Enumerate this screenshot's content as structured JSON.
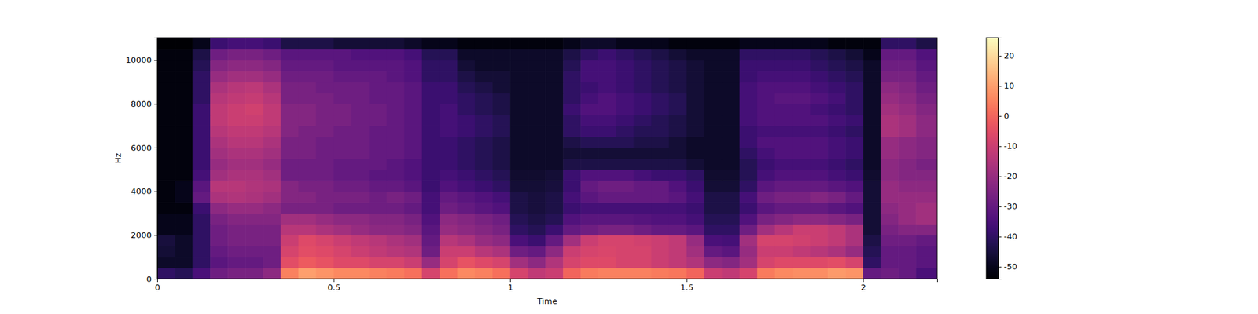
{
  "chart_data": {
    "type": "heatmap",
    "x_label": "Time",
    "y_label": "Hz",
    "color": "magma",
    "xlim": [
      0,
      2.21
    ],
    "ylim": [
      0,
      11025
    ],
    "xticks": [
      0,
      0.5,
      1,
      1.5,
      2
    ],
    "yticks": [
      0,
      2000,
      4000,
      6000,
      8000,
      10000
    ],
    "colorbar": {
      "range": [
        -54,
        26
      ],
      "ticks": [
        -50,
        -40,
        -30,
        -20,
        -10,
        0,
        10,
        20
      ]
    },
    "x_bins": [
      0,
      0.05,
      0.1,
      0.15,
      0.2,
      0.25,
      0.3,
      0.35,
      0.4,
      0.45,
      0.5,
      0.55,
      0.6,
      0.65,
      0.7,
      0.75,
      0.8,
      0.85,
      0.9,
      0.95,
      1,
      1.05,
      1.1,
      1.15,
      1.2,
      1.25,
      1.3,
      1.35,
      1.4,
      1.45,
      1.5,
      1.55,
      1.6,
      1.65,
      1.7,
      1.75,
      1.8,
      1.85,
      1.9,
      1.95,
      2,
      2.05,
      2.1,
      2.15,
      2.21
    ],
    "y_bins": [
      0,
      500,
      1000,
      1500,
      2000,
      2500,
      3000,
      3500,
      4000,
      4500,
      5000,
      5500,
      6000,
      6500,
      7000,
      7500,
      8000,
      8500,
      9000,
      9500,
      10000,
      10500,
      11025
    ],
    "values": [
      [
        -40,
        -42,
        -35,
        -28,
        -26,
        -26,
        -22,
        5,
        10,
        8,
        6,
        6,
        5,
        4,
        2,
        -8,
        2,
        6,
        5,
        2,
        -8,
        -12,
        -10,
        0,
        4,
        5,
        5,
        5,
        4,
        3,
        0,
        -10,
        -12,
        -8,
        4,
        6,
        7,
        7,
        9,
        8,
        -30,
        -28,
        -30,
        -35
      ],
      [
        -48,
        -48,
        -40,
        -32,
        -30,
        -30,
        -28,
        -5,
        -2,
        -4,
        -6,
        -6,
        -8,
        -8,
        -10,
        -20,
        -8,
        -4,
        -6,
        -8,
        -18,
        -22,
        -15,
        -8,
        -6,
        -6,
        -8,
        -8,
        -10,
        -12,
        -15,
        -22,
        -24,
        -18,
        -8,
        -6,
        -6,
        -6,
        -5,
        -8,
        -40,
        -30,
        -30,
        -32
      ],
      [
        -46,
        -48,
        -40,
        -30,
        -28,
        -28,
        -28,
        -8,
        -5,
        -6,
        -8,
        -10,
        -12,
        -14,
        -15,
        -28,
        -10,
        -10,
        -14,
        -16,
        -28,
        -30,
        -22,
        -10,
        -8,
        -7,
        -8,
        -8,
        -10,
        -12,
        -18,
        -30,
        -32,
        -20,
        -10,
        -10,
        -12,
        -14,
        -16,
        -20,
        -42,
        -30,
        -30,
        -32
      ],
      [
        -45,
        -48,
        -40,
        -28,
        -26,
        -26,
        -26,
        -10,
        -6,
        -8,
        -10,
        -12,
        -14,
        -16,
        -18,
        -30,
        -14,
        -16,
        -20,
        -22,
        -35,
        -38,
        -30,
        -18,
        -10,
        -8,
        -8,
        -9,
        -10,
        -12,
        -20,
        -35,
        -36,
        -18,
        -8,
        -8,
        -9,
        -10,
        -12,
        -16,
        -44,
        -28,
        -28,
        -30
      ],
      [
        -50,
        -50,
        -40,
        -28,
        -26,
        -26,
        -26,
        -14,
        -14,
        -16,
        -18,
        -20,
        -22,
        -22,
        -24,
        -32,
        -20,
        -22,
        -24,
        -26,
        -40,
        -42,
        -38,
        -30,
        -28,
        -26,
        -26,
        -28,
        -30,
        -30,
        -32,
        -40,
        -40,
        -28,
        -18,
        -14,
        -10,
        -10,
        -12,
        -16,
        -46,
        -26,
        -24,
        -24
      ],
      [
        -50,
        -50,
        -40,
        -26,
        -24,
        -24,
        -24,
        -18,
        -18,
        -20,
        -22,
        -22,
        -24,
        -24,
        -26,
        -34,
        -22,
        -24,
        -26,
        -28,
        -42,
        -44,
        -42,
        -34,
        -32,
        -32,
        -32,
        -33,
        -34,
        -34,
        -36,
        -42,
        -42,
        -34,
        -26,
        -24,
        -22,
        -22,
        -24,
        -26,
        -46,
        -24,
        -20,
        -18
      ],
      [
        -52,
        -52,
        -38,
        -22,
        -20,
        -20,
        -22,
        -26,
        -26,
        -26,
        -28,
        -28,
        -28,
        -28,
        -30,
        -36,
        -28,
        -30,
        -32,
        -34,
        -44,
        -45,
        -44,
        -38,
        -36,
        -36,
        -36,
        -36,
        -36,
        -36,
        -38,
        -44,
        -44,
        -38,
        -32,
        -30,
        -30,
        -30,
        -32,
        -34,
        -46,
        -22,
        -20,
        -18
      ],
      [
        -52,
        -50,
        -30,
        -16,
        -15,
        -16,
        -18,
        -24,
        -24,
        -26,
        -26,
        -26,
        -28,
        -26,
        -28,
        -36,
        -30,
        -32,
        -34,
        -36,
        -44,
        -45,
        -44,
        -36,
        -32,
        -30,
        -30,
        -30,
        -30,
        -32,
        -36,
        -44,
        -44,
        -36,
        -28,
        -26,
        -26,
        -24,
        -26,
        -30,
        -46,
        -20,
        -20,
        -20
      ],
      [
        -52,
        -50,
        -32,
        -14,
        -14,
        -15,
        -16,
        -24,
        -26,
        -26,
        -28,
        -28,
        -30,
        -30,
        -32,
        -38,
        -34,
        -36,
        -38,
        -40,
        -46,
        -46,
        -45,
        -38,
        -30,
        -28,
        -28,
        -30,
        -30,
        -34,
        -38,
        -46,
        -46,
        -40,
        -32,
        -30,
        -30,
        -30,
        -32,
        -34,
        -46,
        -20,
        -22,
        -22
      ],
      [
        -52,
        -52,
        -36,
        -18,
        -16,
        -16,
        -18,
        -28,
        -28,
        -28,
        -30,
        -30,
        -32,
        -32,
        -34,
        -38,
        -36,
        -38,
        -40,
        -42,
        -47,
        -47,
        -46,
        -38,
        -34,
        -34,
        -34,
        -36,
        -38,
        -38,
        -40,
        -47,
        -47,
        -42,
        -36,
        -34,
        -34,
        -34,
        -36,
        -38,
        -47,
        -22,
        -24,
        -24
      ],
      [
        -52,
        -52,
        -38,
        -20,
        -18,
        -18,
        -20,
        -28,
        -28,
        -28,
        -30,
        -30,
        -30,
        -32,
        -34,
        -38,
        -38,
        -40,
        -42,
        -44,
        -48,
        -48,
        -48,
        -44,
        -44,
        -44,
        -44,
        -44,
        -44,
        -44,
        -46,
        -48,
        -48,
        -42,
        -38,
        -36,
        -36,
        -36,
        -38,
        -40,
        -48,
        -22,
        -24,
        -26
      ],
      [
        -52,
        -52,
        -38,
        -18,
        -16,
        -16,
        -18,
        -26,
        -26,
        -28,
        -28,
        -28,
        -30,
        -30,
        -32,
        -38,
        -38,
        -40,
        -42,
        -44,
        -48,
        -48,
        -48,
        -46,
        -46,
        -46,
        -46,
        -46,
        -46,
        -46,
        -48,
        -48,
        -48,
        -40,
        -36,
        -34,
        -34,
        -34,
        -36,
        -38,
        -48,
        -20,
        -22,
        -24
      ],
      [
        -52,
        -52,
        -38,
        -16,
        -14,
        -14,
        -16,
        -26,
        -26,
        -28,
        -28,
        -28,
        -30,
        -30,
        -32,
        -38,
        -38,
        -40,
        -42,
        -44,
        -48,
        -48,
        -48,
        -44,
        -42,
        -42,
        -42,
        -44,
        -44,
        -46,
        -48,
        -48,
        -48,
        -38,
        -34,
        -34,
        -34,
        -34,
        -36,
        -38,
        -48,
        -20,
        -22,
        -24
      ],
      [
        -52,
        -52,
        -38,
        -14,
        -12,
        -12,
        -14,
        -24,
        -26,
        -26,
        -28,
        -28,
        -30,
        -30,
        -32,
        -38,
        -36,
        -38,
        -40,
        -42,
        -48,
        -48,
        -48,
        -40,
        -38,
        -38,
        -40,
        -42,
        -42,
        -44,
        -46,
        -48,
        -48,
        -38,
        -36,
        -36,
        -36,
        -36,
        -38,
        -40,
        -48,
        -16,
        -18,
        -22
      ],
      [
        -52,
        -52,
        -38,
        -12,
        -10,
        -10,
        -12,
        -24,
        -24,
        -26,
        -26,
        -28,
        -28,
        -30,
        -32,
        -38,
        -36,
        -38,
        -40,
        -42,
        -48,
        -48,
        -48,
        -40,
        -36,
        -36,
        -38,
        -40,
        -42,
        -44,
        -46,
        -48,
        -48,
        -36,
        -34,
        -34,
        -34,
        -34,
        -36,
        -38,
        -48,
        -16,
        -18,
        -22
      ],
      [
        -52,
        -52,
        -38,
        -12,
        -10,
        -9,
        -12,
        -24,
        -24,
        -26,
        -26,
        -28,
        -28,
        -30,
        -32,
        -38,
        -36,
        -40,
        -42,
        -44,
        -48,
        -48,
        -48,
        -38,
        -34,
        -34,
        -36,
        -38,
        -40,
        -42,
        -46,
        -48,
        -48,
        -36,
        -34,
        -34,
        -34,
        -36,
        -38,
        -40,
        -48,
        -18,
        -20,
        -24
      ],
      [
        -52,
        -52,
        -40,
        -14,
        -12,
        -11,
        -14,
        -26,
        -26,
        -26,
        -28,
        -28,
        -30,
        -30,
        -32,
        -38,
        -38,
        -40,
        -42,
        -44,
        -48,
        -48,
        -48,
        -40,
        -36,
        -34,
        -36,
        -38,
        -40,
        -42,
        -46,
        -48,
        -48,
        -36,
        -34,
        -32,
        -32,
        -34,
        -36,
        -40,
        -48,
        -20,
        -22,
        -26
      ],
      [
        -52,
        -52,
        -40,
        -16,
        -14,
        -13,
        -16,
        -26,
        -26,
        -28,
        -28,
        -28,
        -30,
        -30,
        -32,
        -38,
        -38,
        -42,
        -44,
        -46,
        -48,
        -48,
        -48,
        -40,
        -38,
        -36,
        -38,
        -40,
        -42,
        -44,
        -46,
        -48,
        -48,
        -36,
        -34,
        -34,
        -34,
        -36,
        -38,
        -40,
        -48,
        -22,
        -24,
        -28
      ],
      [
        -52,
        -52,
        -40,
        -20,
        -18,
        -18,
        -20,
        -28,
        -28,
        -28,
        -30,
        -30,
        -30,
        -32,
        -34,
        -40,
        -40,
        -44,
        -46,
        -46,
        -48,
        -48,
        -48,
        -40,
        -36,
        -36,
        -38,
        -40,
        -42,
        -44,
        -46,
        -48,
        -48,
        -38,
        -36,
        -36,
        -36,
        -38,
        -40,
        -42,
        -48,
        -26,
        -26,
        -30
      ],
      [
        -52,
        -52,
        -42,
        -24,
        -22,
        -22,
        -24,
        -30,
        -30,
        -30,
        -32,
        -32,
        -32,
        -32,
        -34,
        -40,
        -40,
        -46,
        -48,
        -48,
        -48,
        -48,
        -48,
        -42,
        -36,
        -36,
        -38,
        -40,
        -42,
        -44,
        -46,
        -48,
        -48,
        -38,
        -38,
        -38,
        -38,
        -40,
        -42,
        -44,
        -48,
        -28,
        -28,
        -32
      ],
      [
        -52,
        -52,
        -44,
        -28,
        -26,
        -26,
        -28,
        -32,
        -32,
        -32,
        -32,
        -34,
        -34,
        -34,
        -36,
        -42,
        -42,
        -48,
        -48,
        -48,
        -48,
        -48,
        -48,
        -44,
        -40,
        -38,
        -40,
        -42,
        -44,
        -46,
        -48,
        -48,
        -48,
        -40,
        -40,
        -40,
        -40,
        -42,
        -44,
        -46,
        -50,
        -30,
        -30,
        -34
      ],
      [
        -54,
        -54,
        -50,
        -38,
        -36,
        -36,
        -38,
        -44,
        -44,
        -44,
        -46,
        -46,
        -46,
        -46,
        -48,
        -50,
        -50,
        -52,
        -52,
        -52,
        -52,
        -52,
        -52,
        -50,
        -48,
        -48,
        -50,
        -50,
        -50,
        -52,
        -52,
        -52,
        -52,
        -50,
        -50,
        -50,
        -50,
        -50,
        -52,
        -52,
        -52,
        -40,
        -40,
        -44
      ]
    ]
  }
}
